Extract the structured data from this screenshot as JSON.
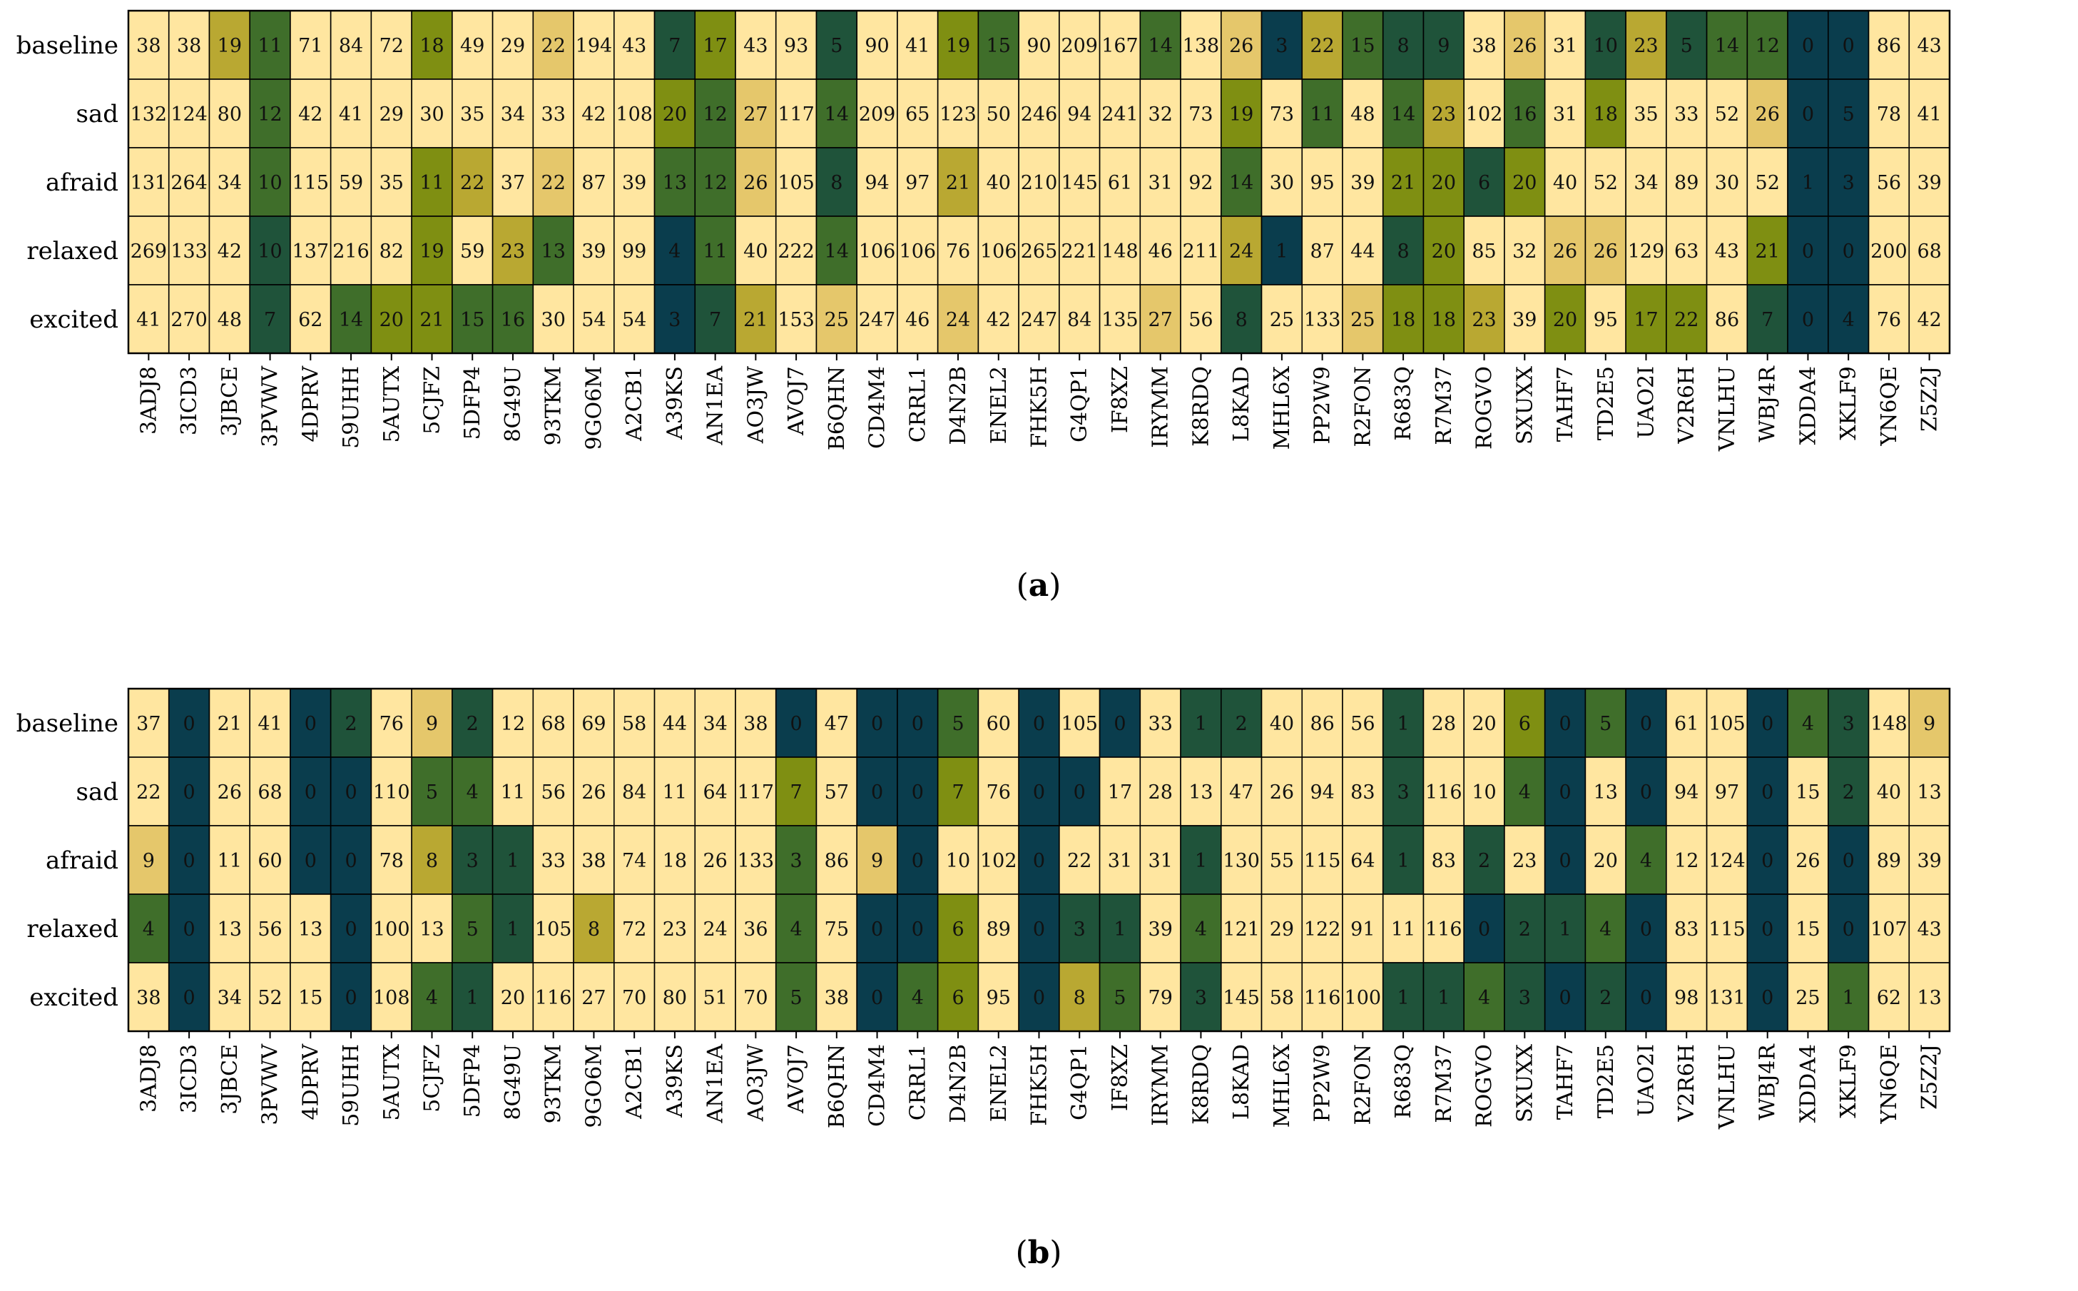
{
  "figure": {
    "panels": [
      "(a)",
      "(b)"
    ],
    "caption_a_open": "(",
    "caption_a_letter": "a",
    "caption_a_close": ")",
    "caption_b_open": "(",
    "caption_b_letter": "b",
    "caption_b_close": ")"
  },
  "colors": {
    "c0": "#ffe6a0",
    "c1": "#e5c76b",
    "c2": "#b9a832",
    "c3": "#7f8f12",
    "c4": "#3f6e2a",
    "c5": "#1f533a",
    "c6": "#0a3d4d"
  },
  "chart_data": [
    {
      "type": "heatmap",
      "title": "(a)",
      "rows": [
        "baseline",
        "sad",
        "afraid",
        "relaxed",
        "excited"
      ],
      "columns": [
        "3ADJ8",
        "3ICD3",
        "3JBCE",
        "3PVWV",
        "4DPRV",
        "59UHH",
        "5AUTX",
        "5CJFZ",
        "5DFP4",
        "8G49U",
        "93TKM",
        "9GO6M",
        "A2CB1",
        "A39KS",
        "AN1EA",
        "AO3JW",
        "AVOJ7",
        "B6QHN",
        "CD4M4",
        "CRRL1",
        "D4N2B",
        "ENEL2",
        "FHK5H",
        "G4QP1",
        "IF8XZ",
        "IRYMM",
        "K8RDQ",
        "L8KAD",
        "MHL6X",
        "PP2W9",
        "R2FON",
        "R683Q",
        "R7M37",
        "ROGVO",
        "SXUXX",
        "TAHF7",
        "TD2E5",
        "UAO2I",
        "V2R6H",
        "VNLHU",
        "WBJ4R",
        "XDDA4",
        "XKLF9",
        "YN6QE",
        "Z5Z2J"
      ],
      "values": [
        [
          38,
          38,
          19,
          11,
          71,
          84,
          72,
          18,
          49,
          29,
          22,
          194,
          43,
          7,
          17,
          43,
          93,
          5,
          90,
          41,
          19,
          15,
          90,
          209,
          167,
          14,
          138,
          26,
          3,
          22,
          15,
          8,
          9,
          38,
          26,
          31,
          10,
          23,
          5,
          14,
          12,
          0,
          0,
          86,
          43
        ],
        [
          132,
          124,
          80,
          12,
          42,
          41,
          29,
          30,
          35,
          34,
          33,
          42,
          108,
          20,
          12,
          27,
          117,
          14,
          209,
          65,
          123,
          50,
          246,
          94,
          241,
          32,
          73,
          19,
          73,
          11,
          48,
          14,
          23,
          102,
          16,
          31,
          18,
          35,
          33,
          52,
          26,
          0,
          5,
          78,
          41
        ],
        [
          131,
          264,
          34,
          10,
          115,
          59,
          35,
          11,
          22,
          37,
          22,
          87,
          39,
          13,
          12,
          26,
          105,
          8,
          94,
          97,
          21,
          40,
          210,
          145,
          61,
          31,
          92,
          14,
          30,
          95,
          39,
          21,
          20,
          6,
          20,
          40,
          52,
          34,
          89,
          30,
          52,
          1,
          3,
          56,
          39
        ],
        [
          269,
          133,
          42,
          10,
          137,
          216,
          82,
          19,
          59,
          23,
          13,
          39,
          99,
          4,
          11,
          40,
          222,
          14,
          106,
          106,
          76,
          106,
          265,
          221,
          148,
          46,
          211,
          24,
          1,
          87,
          44,
          8,
          20,
          85,
          32,
          26,
          26,
          129,
          63,
          43,
          21,
          0,
          0,
          200,
          68
        ],
        [
          41,
          270,
          48,
          7,
          62,
          14,
          20,
          21,
          15,
          16,
          30,
          54,
          54,
          3,
          7,
          21,
          153,
          25,
          247,
          46,
          24,
          42,
          247,
          84,
          135,
          27,
          56,
          8,
          25,
          133,
          25,
          18,
          18,
          23,
          39,
          20,
          95,
          17,
          22,
          86,
          7,
          0,
          4,
          76,
          42
        ]
      ],
      "color_levels": [
        [
          0,
          0,
          2,
          4,
          0,
          0,
          0,
          3,
          0,
          0,
          1,
          0,
          0,
          5,
          3,
          0,
          0,
          5,
          0,
          0,
          3,
          4,
          0,
          0,
          0,
          4,
          0,
          1,
          6,
          2,
          4,
          5,
          5,
          0,
          1,
          0,
          5,
          2,
          5,
          4,
          4,
          6,
          6,
          0,
          0
        ],
        [
          0,
          0,
          0,
          4,
          0,
          0,
          0,
          0,
          0,
          0,
          0,
          0,
          0,
          3,
          4,
          1,
          0,
          4,
          0,
          0,
          0,
          0,
          0,
          0,
          0,
          0,
          0,
          3,
          0,
          4,
          0,
          4,
          2,
          0,
          4,
          0,
          3,
          0,
          0,
          0,
          1,
          6,
          6,
          0,
          0
        ],
        [
          0,
          0,
          0,
          4,
          0,
          0,
          0,
          3,
          2,
          0,
          1,
          0,
          0,
          4,
          4,
          1,
          0,
          5,
          0,
          0,
          2,
          0,
          0,
          0,
          0,
          0,
          0,
          4,
          0,
          0,
          0,
          3,
          3,
          5,
          3,
          0,
          0,
          0,
          0,
          0,
          0,
          6,
          6,
          0,
          0
        ],
        [
          0,
          0,
          0,
          5,
          0,
          0,
          0,
          3,
          0,
          2,
          4,
          0,
          0,
          6,
          4,
          0,
          0,
          4,
          0,
          0,
          0,
          0,
          0,
          0,
          0,
          0,
          0,
          2,
          6,
          0,
          0,
          5,
          3,
          0,
          0,
          1,
          1,
          0,
          0,
          0,
          3,
          6,
          6,
          0,
          0
        ],
        [
          0,
          0,
          0,
          5,
          0,
          4,
          3,
          3,
          4,
          4,
          0,
          0,
          0,
          6,
          5,
          2,
          0,
          1,
          0,
          0,
          1,
          0,
          0,
          0,
          0,
          1,
          0,
          5,
          0,
          0,
          1,
          3,
          3,
          2,
          0,
          3,
          0,
          3,
          3,
          0,
          5,
          6,
          6,
          0,
          0
        ]
      ]
    },
    {
      "type": "heatmap",
      "title": "(b)",
      "rows": [
        "baseline",
        "sad",
        "afraid",
        "relaxed",
        "excited"
      ],
      "columns": [
        "3ADJ8",
        "3ICD3",
        "3JBCE",
        "3PVWV",
        "4DPRV",
        "59UHH",
        "5AUTX",
        "5CJFZ",
        "5DFP4",
        "8G49U",
        "93TKM",
        "9GO6M",
        "A2CB1",
        "A39KS",
        "AN1EA",
        "AO3JW",
        "AVOJ7",
        "B6QHN",
        "CD4M4",
        "CRRL1",
        "D4N2B",
        "ENEL2",
        "FHK5H",
        "G4QP1",
        "IF8XZ",
        "IRYMM",
        "K8RDQ",
        "L8KAD",
        "MHL6X",
        "PP2W9",
        "R2FON",
        "R683Q",
        "R7M37",
        "ROGVO",
        "SXUXX",
        "TAHF7",
        "TD2E5",
        "UAO2I",
        "V2R6H",
        "VNLHU",
        "WBJ4R",
        "XDDA4",
        "XKLF9",
        "YN6QE",
        "Z5Z2J"
      ],
      "values": [
        [
          37,
          0,
          21,
          41,
          0,
          2,
          76,
          9,
          2,
          12,
          68,
          69,
          58,
          44,
          34,
          38,
          0,
          47,
          0,
          0,
          5,
          60,
          0,
          105,
          0,
          33,
          1,
          2,
          40,
          86,
          56,
          1,
          28,
          20,
          6,
          0,
          5,
          0,
          61,
          105,
          0,
          4,
          3,
          148,
          9
        ],
        [
          22,
          0,
          26,
          68,
          0,
          0,
          110,
          5,
          4,
          11,
          56,
          26,
          84,
          11,
          64,
          117,
          7,
          57,
          0,
          0,
          7,
          76,
          0,
          0,
          17,
          28,
          13,
          47,
          26,
          94,
          83,
          3,
          116,
          10,
          4,
          0,
          13,
          0,
          94,
          97,
          0,
          15,
          2,
          40,
          13
        ],
        [
          9,
          0,
          11,
          60,
          0,
          0,
          78,
          8,
          3,
          1,
          33,
          38,
          74,
          18,
          26,
          133,
          3,
          86,
          9,
          0,
          10,
          102,
          0,
          22,
          31,
          31,
          1,
          130,
          55,
          115,
          64,
          1,
          83,
          2,
          23,
          0,
          20,
          4,
          12,
          124,
          0,
          26,
          0,
          89,
          39
        ],
        [
          4,
          0,
          13,
          56,
          13,
          0,
          100,
          13,
          5,
          1,
          105,
          8,
          72,
          23,
          24,
          36,
          4,
          75,
          0,
          0,
          6,
          89,
          0,
          3,
          1,
          39,
          4,
          121,
          29,
          122,
          91,
          11,
          116,
          0,
          2,
          1,
          4,
          0,
          83,
          115,
          0,
          15,
          0,
          107,
          43
        ],
        [
          38,
          0,
          34,
          52,
          15,
          0,
          108,
          4,
          1,
          20,
          116,
          27,
          70,
          80,
          51,
          70,
          5,
          38,
          0,
          4,
          6,
          95,
          0,
          8,
          5,
          79,
          3,
          145,
          58,
          116,
          100,
          1,
          1,
          4,
          3,
          0,
          2,
          0,
          98,
          131,
          0,
          25,
          1,
          62,
          13
        ]
      ],
      "color_levels": [
        [
          0,
          6,
          0,
          0,
          6,
          5,
          0,
          1,
          5,
          0,
          0,
          0,
          0,
          0,
          0,
          0,
          6,
          0,
          6,
          6,
          4,
          0,
          6,
          0,
          6,
          0,
          5,
          5,
          0,
          0,
          0,
          5,
          0,
          0,
          3,
          6,
          4,
          6,
          0,
          0,
          6,
          4,
          5,
          0,
          1
        ],
        [
          0,
          6,
          0,
          0,
          6,
          6,
          0,
          4,
          4,
          0,
          0,
          0,
          0,
          0,
          0,
          0,
          3,
          0,
          6,
          6,
          3,
          0,
          6,
          6,
          0,
          0,
          0,
          0,
          0,
          0,
          0,
          5,
          0,
          0,
          4,
          6,
          0,
          6,
          0,
          0,
          6,
          0,
          5,
          0,
          0
        ],
        [
          1,
          6,
          0,
          0,
          6,
          6,
          0,
          2,
          5,
          5,
          0,
          0,
          0,
          0,
          0,
          0,
          4,
          0,
          1,
          6,
          0,
          0,
          6,
          0,
          0,
          0,
          5,
          0,
          0,
          0,
          0,
          5,
          0,
          5,
          0,
          6,
          0,
          4,
          0,
          0,
          6,
          0,
          6,
          0,
          0
        ],
        [
          4,
          6,
          0,
          0,
          0,
          6,
          0,
          0,
          4,
          5,
          0,
          2,
          0,
          0,
          0,
          0,
          4,
          0,
          6,
          6,
          3,
          0,
          6,
          5,
          5,
          0,
          4,
          0,
          0,
          0,
          0,
          0,
          0,
          6,
          5,
          5,
          4,
          6,
          0,
          0,
          6,
          0,
          6,
          0,
          0
        ],
        [
          0,
          6,
          0,
          0,
          0,
          6,
          0,
          4,
          5,
          0,
          0,
          0,
          0,
          0,
          0,
          0,
          4,
          0,
          6,
          4,
          3,
          0,
          6,
          2,
          4,
          0,
          5,
          0,
          0,
          0,
          0,
          5,
          5,
          4,
          5,
          6,
          5,
          6,
          0,
          0,
          6,
          0,
          4,
          0,
          0
        ]
      ]
    }
  ]
}
